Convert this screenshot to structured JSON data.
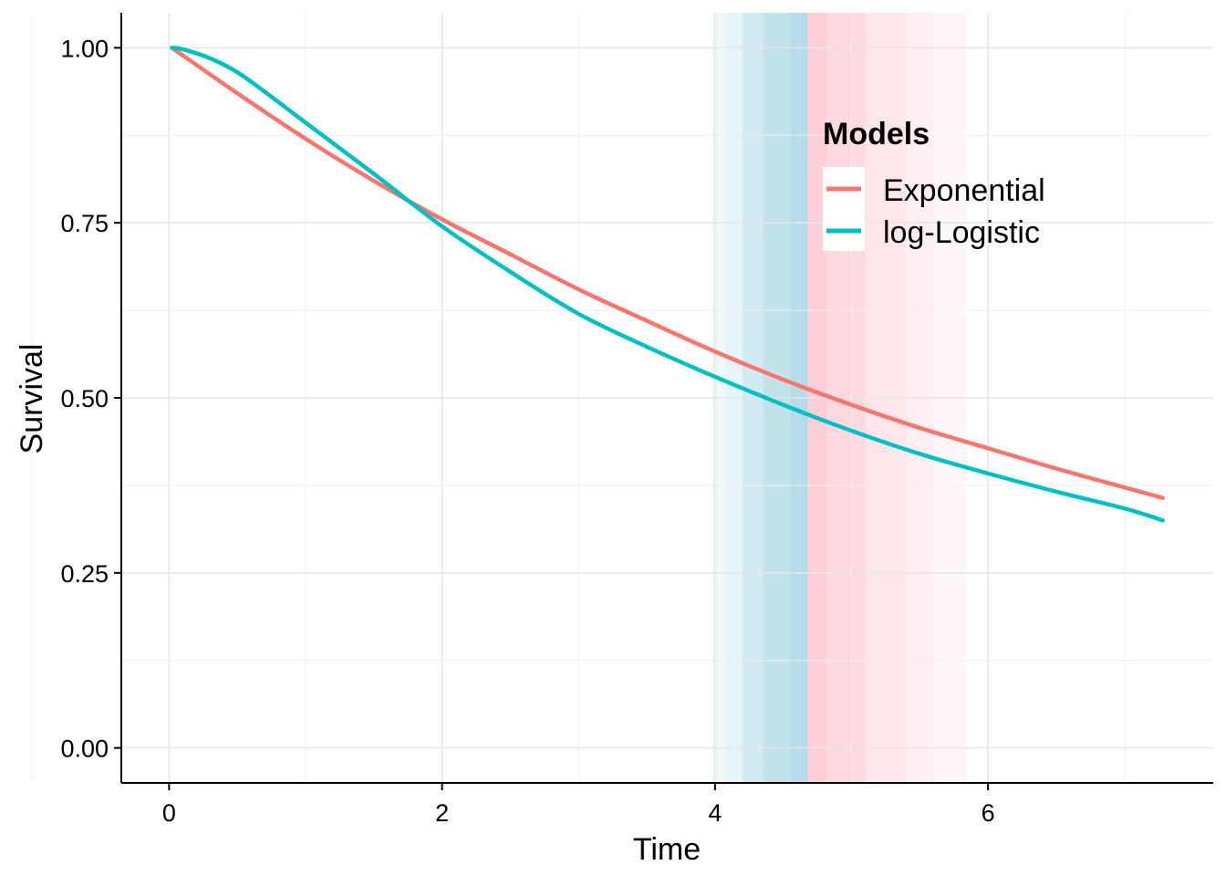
{
  "chart_data": {
    "type": "line",
    "xlabel": "Time",
    "ylabel": "Survival",
    "xlim": [
      -0.35,
      7.65
    ],
    "ylim": [
      -0.05,
      1.05
    ],
    "x_ticks": [
      0,
      2,
      4,
      6
    ],
    "x_tick_labels": [
      "0",
      "2",
      "4",
      "6"
    ],
    "y_ticks": [
      0,
      0.25,
      0.5,
      0.75,
      1.0
    ],
    "y_tick_labels": [
      "0.00",
      "0.25",
      "0.50",
      "0.75",
      "1.00"
    ],
    "grid": true,
    "legend": {
      "title": "Models",
      "position": "top-right inside plot"
    },
    "series": [
      {
        "name": "Exponential",
        "color": "#F8766D",
        "x": [
          0.02,
          0.5,
          1,
          1.5,
          2,
          2.5,
          3,
          3.5,
          4,
          4.5,
          5,
          5.5,
          6,
          6.5,
          7,
          7.28
        ],
        "y": [
          1.0,
          0.935,
          0.87,
          0.81,
          0.755,
          0.705,
          0.655,
          0.61,
          0.566,
          0.526,
          0.49,
          0.457,
          0.428,
          0.399,
          0.372,
          0.357
        ]
      },
      {
        "name": "log-Logistic",
        "color": "#00BFC4",
        "x": [
          0.02,
          0.1,
          0.3,
          0.5,
          0.75,
          1,
          1.5,
          2,
          2.5,
          3,
          3.5,
          4,
          4.5,
          5,
          5.5,
          6,
          6.5,
          7,
          7.28
        ],
        "y": [
          1.0,
          0.998,
          0.985,
          0.965,
          0.93,
          0.893,
          0.82,
          0.745,
          0.68,
          0.62,
          0.573,
          0.53,
          0.49,
          0.453,
          0.42,
          0.392,
          0.366,
          0.342,
          0.325
        ]
      }
    ],
    "shaded_bands": [
      {
        "x0": 3.98,
        "x1": 4.08,
        "color": "#ADD8E6",
        "opacity": 0.18
      },
      {
        "x0": 4.08,
        "x1": 4.2,
        "color": "#ADD8E6",
        "opacity": 0.3
      },
      {
        "x0": 4.2,
        "x1": 4.35,
        "color": "#ADD8E6",
        "opacity": 0.55
      },
      {
        "x0": 4.35,
        "x1": 4.55,
        "color": "#ADD8E6",
        "opacity": 0.75
      },
      {
        "x0": 4.55,
        "x1": 4.68,
        "color": "#ADD8E6",
        "opacity": 0.9
      },
      {
        "x0": 4.68,
        "x1": 4.82,
        "color": "#FFC0CB",
        "opacity": 0.75
      },
      {
        "x0": 4.82,
        "x1": 5.1,
        "color": "#FFC0CB",
        "opacity": 0.6
      },
      {
        "x0": 5.1,
        "x1": 5.4,
        "color": "#FFC0CB",
        "opacity": 0.4
      },
      {
        "x0": 5.4,
        "x1": 5.6,
        "color": "#FFC0CB",
        "opacity": 0.25
      },
      {
        "x0": 5.6,
        "x1": 5.85,
        "color": "#FFC0CB",
        "opacity": 0.12
      }
    ]
  }
}
